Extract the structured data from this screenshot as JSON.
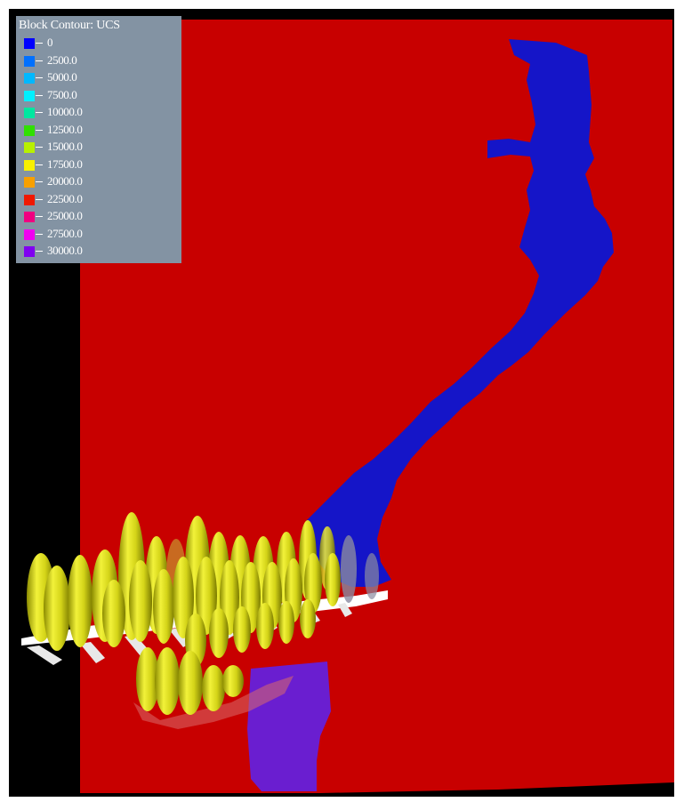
{
  "image": {
    "frame_color": "#000000",
    "model_color": "#c80000",
    "zone_blue_color": "#1616c8",
    "zone_purple_color": "#6a1ed0",
    "pillar_color": "#d2d21a",
    "support_color": "#ffffff"
  },
  "legend": {
    "title": "Block Contour: UCS",
    "background": "#8393a3",
    "items": [
      {
        "label": "0",
        "color": "#0000ff"
      },
      {
        "label": "2500.0",
        "color": "#0070ff"
      },
      {
        "label": "5000.0",
        "color": "#00b8ff"
      },
      {
        "label": "7500.0",
        "color": "#00f0ff"
      },
      {
        "label": "10000.0",
        "color": "#00e8a0"
      },
      {
        "label": "12500.0",
        "color": "#30e000"
      },
      {
        "label": "15000.0",
        "color": "#b8f000"
      },
      {
        "label": "17500.0",
        "color": "#f8f000"
      },
      {
        "label": "20000.0",
        "color": "#f8a000"
      },
      {
        "label": "22500.0",
        "color": "#f01800"
      },
      {
        "label": "25000.0",
        "color": "#f00080"
      },
      {
        "label": "27500.0",
        "color": "#f000f0"
      },
      {
        "label": "30000.0",
        "color": "#8000f0"
      }
    ]
  }
}
